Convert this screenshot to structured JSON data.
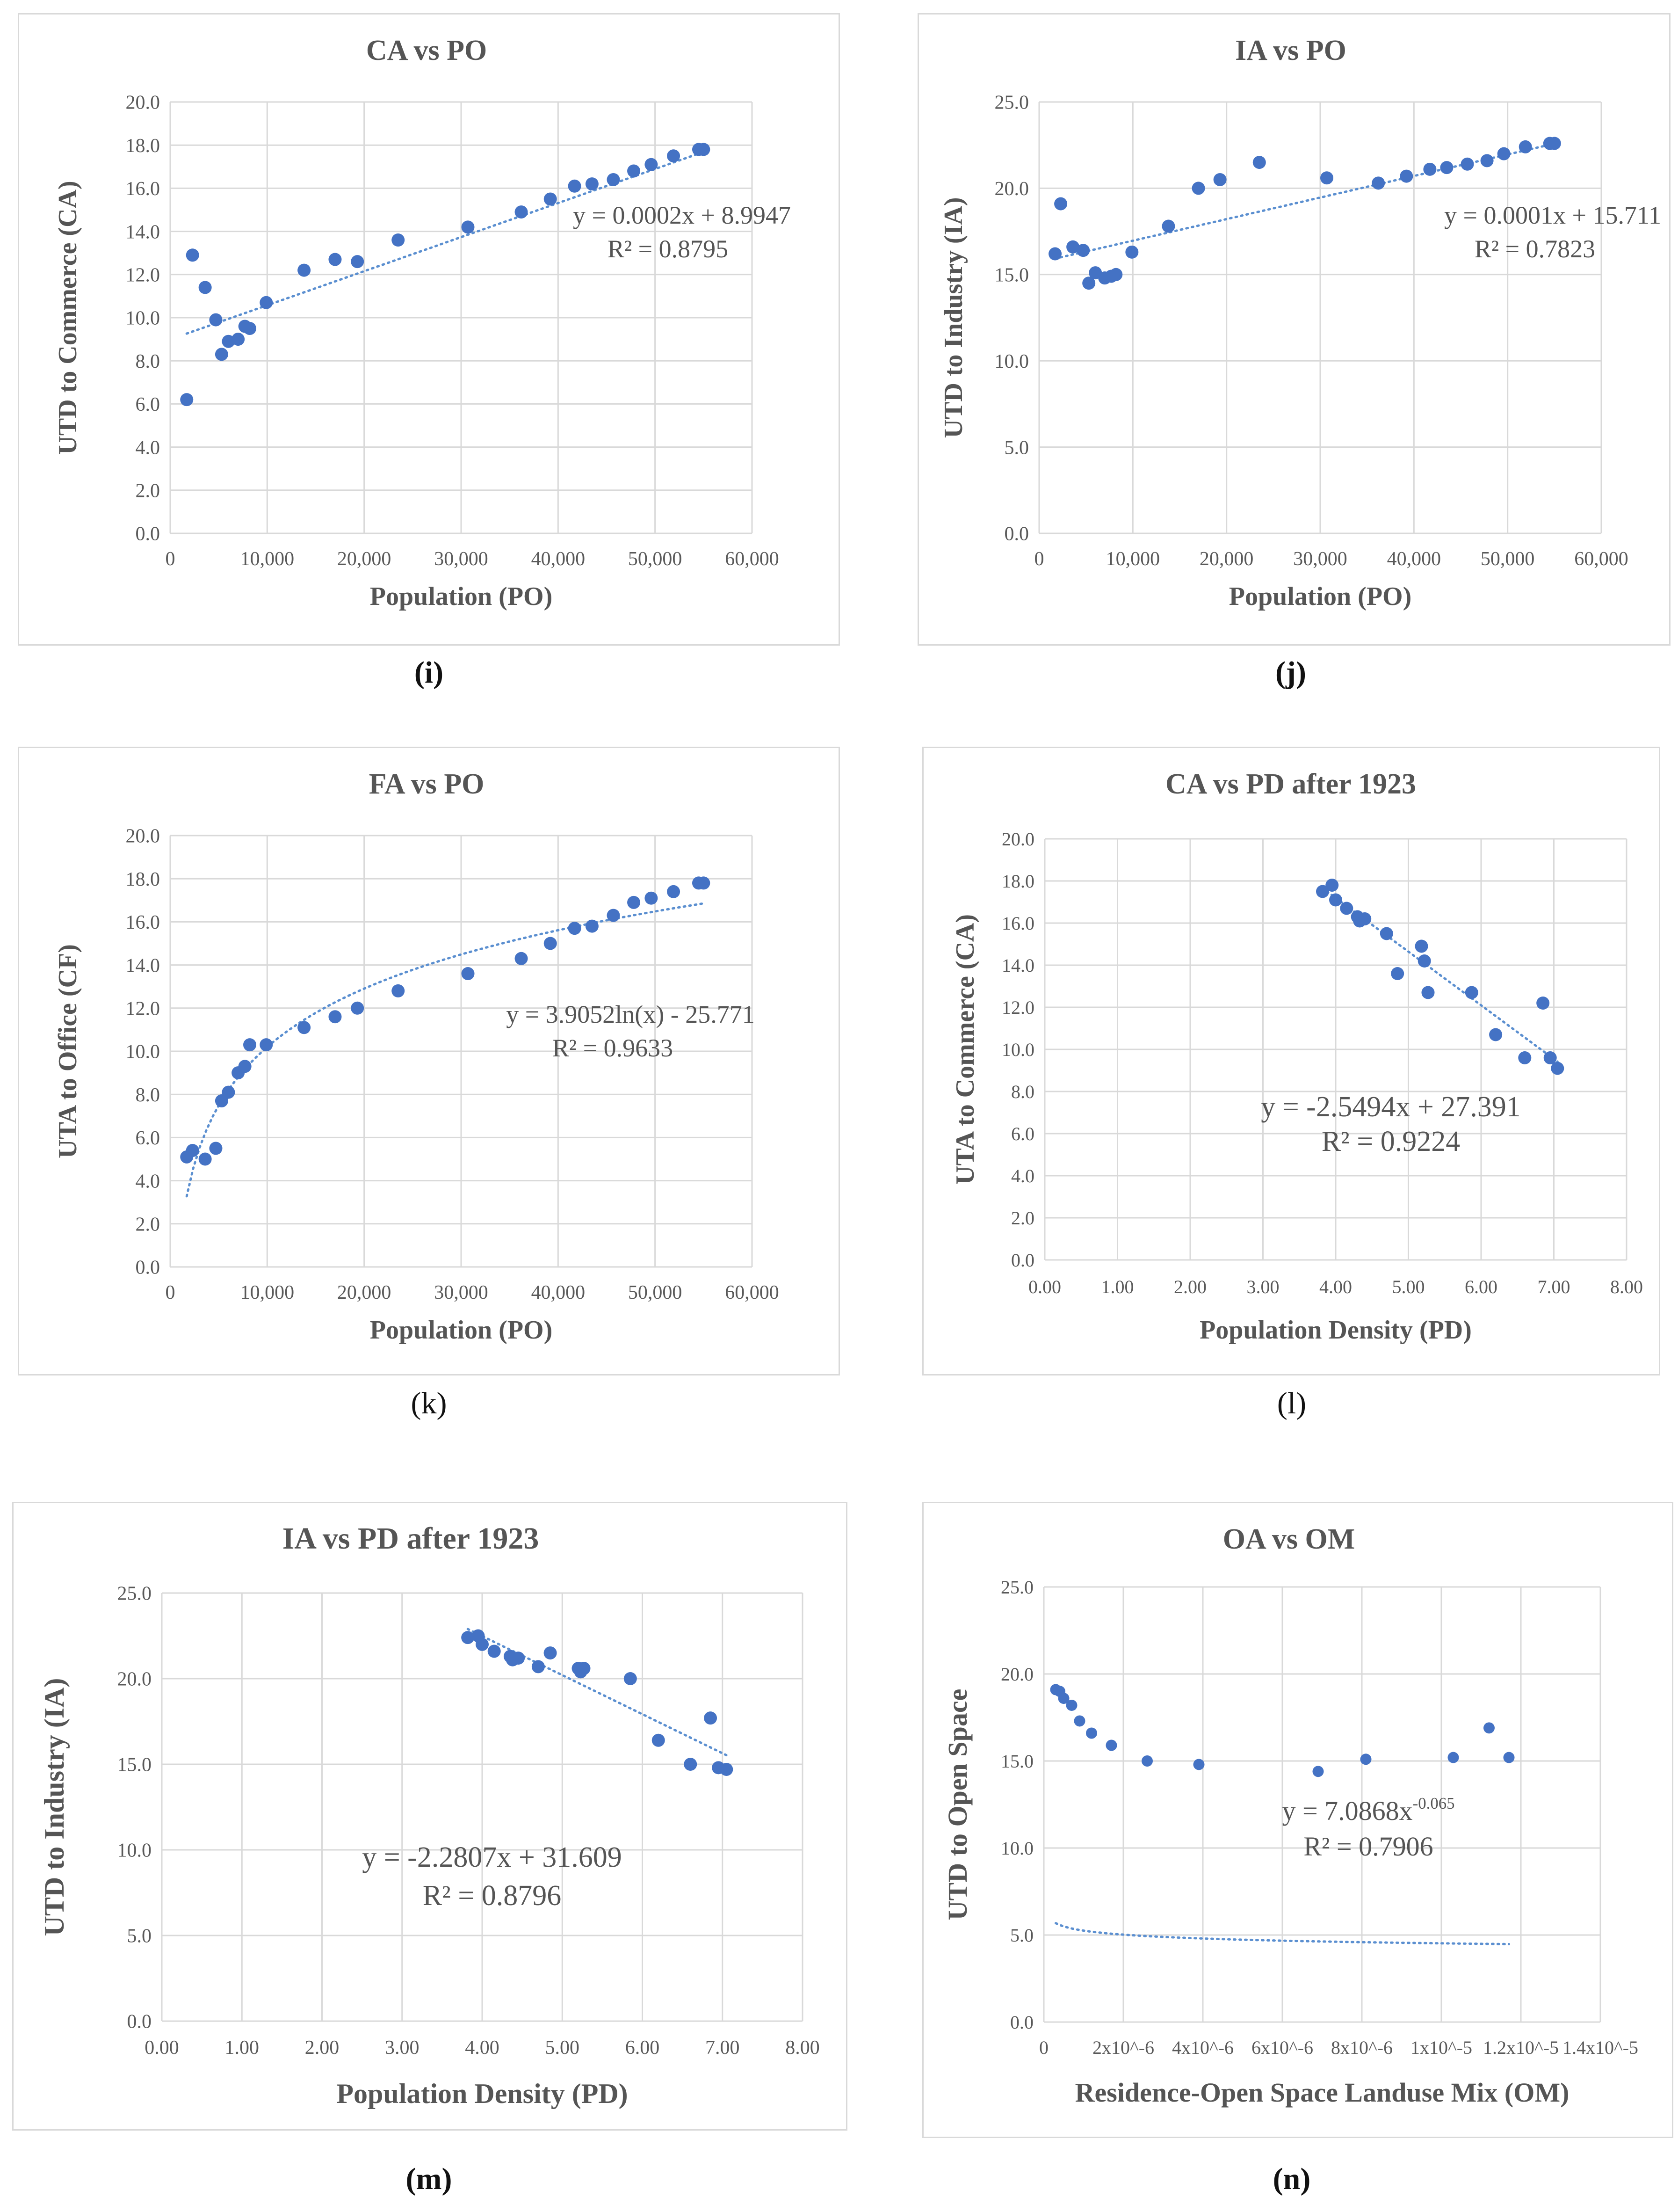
{
  "charts": [
    {
      "id": "i",
      "panel_label": "(i)",
      "type": "scatter",
      "title": "CA vs PO",
      "xlabel": "Population (PO)",
      "ylabel": "UTD to Commerce (CA)",
      "xlim": [
        0,
        60000
      ],
      "ylim": [
        0,
        20
      ],
      "xticks": [
        0,
        10000,
        20000,
        30000,
        40000,
        50000,
        60000
      ],
      "xtick_labels": [
        "0",
        "10,000",
        "20,000",
        "30,000",
        "40,000",
        "50,000",
        "60,000"
      ],
      "yticks": [
        0,
        2,
        4,
        6,
        8,
        10,
        12,
        14,
        16,
        18,
        20
      ],
      "ytick_labels": [
        "0.0",
        "2.0",
        "4.0",
        "6.0",
        "8.0",
        "10.0",
        "12.0",
        "14.0",
        "16.0",
        "18.0",
        "20.0"
      ],
      "points": [
        [
          1700,
          6.2
        ],
        [
          2300,
          12.9
        ],
        [
          3600,
          11.4
        ],
        [
          4700,
          9.9
        ],
        [
          5300,
          8.3
        ],
        [
          6000,
          8.9
        ],
        [
          7000,
          9.0
        ],
        [
          7700,
          9.6
        ],
        [
          8200,
          9.5
        ],
        [
          9900,
          10.7
        ],
        [
          13800,
          12.2
        ],
        [
          17000,
          12.7
        ],
        [
          19300,
          12.6
        ],
        [
          23500,
          13.6
        ],
        [
          30700,
          14.2
        ],
        [
          36200,
          14.9
        ],
        [
          39200,
          15.5
        ],
        [
          41700,
          16.1
        ],
        [
          43500,
          16.2
        ],
        [
          45700,
          16.4
        ],
        [
          47800,
          16.8
        ],
        [
          49600,
          17.1
        ],
        [
          51900,
          17.5
        ],
        [
          54500,
          17.8
        ],
        [
          55000,
          17.8
        ]
      ],
      "trend": {
        "kind": "linear",
        "a": 0.000158,
        "b": 8.9947,
        "x_range": [
          1700,
          55000
        ]
      },
      "equation": "y = 0.0002x + 8.9947",
      "r2": "R² = 0.8795"
    },
    {
      "id": "j",
      "panel_label": "(j)",
      "type": "scatter",
      "title": "IA vs PO",
      "xlabel": "Population (PO)",
      "ylabel": "UTD to Industry (IA)",
      "xlim": [
        0,
        60000
      ],
      "ylim": [
        0,
        25
      ],
      "xticks": [
        0,
        10000,
        20000,
        30000,
        40000,
        50000,
        60000
      ],
      "xtick_labels": [
        "0",
        "10,000",
        "20,000",
        "30,000",
        "40,000",
        "50,000",
        "60,000"
      ],
      "yticks": [
        0,
        5,
        10,
        15,
        20,
        25
      ],
      "ytick_labels": [
        "0.0",
        "5.0",
        "10.0",
        "15.0",
        "20.0",
        "25.0"
      ],
      "points": [
        [
          1700,
          16.2
        ],
        [
          2300,
          19.1
        ],
        [
          3600,
          16.6
        ],
        [
          4700,
          16.4
        ],
        [
          5300,
          14.5
        ],
        [
          6000,
          15.1
        ],
        [
          7000,
          14.8
        ],
        [
          7700,
          14.9
        ],
        [
          8200,
          15.0
        ],
        [
          9900,
          16.3
        ],
        [
          13800,
          17.8
        ],
        [
          17000,
          20.0
        ],
        [
          19300,
          20.5
        ],
        [
          23500,
          21.5
        ],
        [
          30700,
          20.6
        ],
        [
          36200,
          20.3
        ],
        [
          39200,
          20.7
        ],
        [
          41700,
          21.1
        ],
        [
          43500,
          21.2
        ],
        [
          45700,
          21.4
        ],
        [
          47800,
          21.6
        ],
        [
          49600,
          22.0
        ],
        [
          51900,
          22.4
        ],
        [
          54500,
          22.6
        ],
        [
          55000,
          22.6
        ]
      ],
      "trend": {
        "kind": "linear",
        "a": 0.000125,
        "b": 15.711,
        "x_range": [
          1700,
          55000
        ]
      },
      "equation": "y = 0.0001x + 15.711",
      "r2": "R² = 0.7823"
    },
    {
      "id": "k",
      "panel_label": "(k)",
      "type": "scatter",
      "title": "FA vs PO",
      "xlabel": "Population  (PO)",
      "ylabel": "UTA to Office (CF)",
      "xlim": [
        0,
        60000
      ],
      "ylim": [
        0,
        20
      ],
      "xticks": [
        0,
        10000,
        20000,
        30000,
        40000,
        50000,
        60000
      ],
      "xtick_labels": [
        "0",
        "10,000",
        "20,000",
        "30,000",
        "40,000",
        "50,000",
        "60,000"
      ],
      "yticks": [
        0,
        2,
        4,
        6,
        8,
        10,
        12,
        14,
        16,
        18,
        20
      ],
      "ytick_labels": [
        "0.0",
        "2.0",
        "4.0",
        "6.0",
        "8.0",
        "10.0",
        "12.0",
        "14.0",
        "16.0",
        "18.0",
        "20.0"
      ],
      "points": [
        [
          1700,
          5.1
        ],
        [
          2300,
          5.4
        ],
        [
          3600,
          5.0
        ],
        [
          4700,
          5.5
        ],
        [
          5300,
          7.7
        ],
        [
          6000,
          8.1
        ],
        [
          7000,
          9.0
        ],
        [
          7700,
          9.3
        ],
        [
          8200,
          10.3
        ],
        [
          9900,
          10.3
        ],
        [
          13800,
          11.1
        ],
        [
          17000,
          11.6
        ],
        [
          19300,
          12.0
        ],
        [
          23500,
          12.8
        ],
        [
          30700,
          13.6
        ],
        [
          36200,
          14.3
        ],
        [
          39200,
          15.0
        ],
        [
          41700,
          15.7
        ],
        [
          43500,
          15.8
        ],
        [
          45700,
          16.3
        ],
        [
          47800,
          16.9
        ],
        [
          49600,
          17.1
        ],
        [
          51900,
          17.4
        ],
        [
          54500,
          17.8
        ],
        [
          55000,
          17.8
        ]
      ],
      "trend": {
        "kind": "log",
        "a": 3.9052,
        "b": -25.771,
        "x_range": [
          1700,
          55000
        ]
      },
      "equation": "y = 3.9052ln(x) - 25.771",
      "r2": "R² = 0.9633"
    },
    {
      "id": "l",
      "panel_label": "(l)",
      "type": "scatter",
      "title": "CA vs PD after 1923",
      "xlabel": "Population Density (PD)",
      "ylabel": "UTA to Commerce  (CA)",
      "xlim": [
        0,
        8
      ],
      "ylim": [
        0,
        20
      ],
      "xticks": [
        0,
        1,
        2,
        3,
        4,
        5,
        6,
        7,
        8
      ],
      "xtick_labels": [
        "0.00",
        "1.00",
        "2.00",
        "3.00",
        "4.00",
        "5.00",
        "6.00",
        "7.00",
        "8.00"
      ],
      "yticks": [
        0,
        2,
        4,
        6,
        8,
        10,
        12,
        14,
        16,
        18,
        20
      ],
      "ytick_labels": [
        "0.0",
        "2.0",
        "4.0",
        "6.0",
        "8.0",
        "10.0",
        "12.0",
        "14.0",
        "16.0",
        "18.0",
        "20.0"
      ],
      "points": [
        [
          3.82,
          17.5
        ],
        [
          3.95,
          17.8
        ],
        [
          4.0,
          17.1
        ],
        [
          4.15,
          16.7
        ],
        [
          4.3,
          16.3
        ],
        [
          4.33,
          16.1
        ],
        [
          4.4,
          16.2
        ],
        [
          4.7,
          15.5
        ],
        [
          4.85,
          13.6
        ],
        [
          5.18,
          14.9
        ],
        [
          5.22,
          14.2
        ],
        [
          5.27,
          12.7
        ],
        [
          5.87,
          12.7
        ],
        [
          6.2,
          10.7
        ],
        [
          6.6,
          9.6
        ],
        [
          6.85,
          12.2
        ],
        [
          6.95,
          9.6
        ],
        [
          7.05,
          9.1
        ]
      ],
      "trend": {
        "kind": "linear",
        "a": -2.5494,
        "b": 27.391,
        "x_range": [
          3.82,
          7.05
        ]
      },
      "equation": "y = -2.5494x + 27.391",
      "r2": "R² = 0.9224"
    },
    {
      "id": "m",
      "panel_label": "(m)",
      "type": "scatter",
      "title": "IA vs PD after 1923",
      "xlabel": "Population Density (PD)",
      "ylabel": "UTD to Industry (IA)",
      "xlim": [
        0,
        8
      ],
      "ylim": [
        0,
        25
      ],
      "xticks": [
        0,
        1,
        2,
        3,
        4,
        5,
        6,
        7,
        8
      ],
      "xtick_labels": [
        "0.00",
        "1.00",
        "2.00",
        "3.00",
        "4.00",
        "5.00",
        "6.00",
        "7.00",
        "8.00"
      ],
      "yticks": [
        0,
        5,
        10,
        15,
        20,
        25
      ],
      "ytick_labels": [
        "0.0",
        "5.0",
        "10.0",
        "15.0",
        "20.0",
        "25.0"
      ],
      "points": [
        [
          3.82,
          22.4
        ],
        [
          3.95,
          22.5
        ],
        [
          4.0,
          22.0
        ],
        [
          4.15,
          21.6
        ],
        [
          4.35,
          21.3
        ],
        [
          4.38,
          21.1
        ],
        [
          4.45,
          21.2
        ],
        [
          4.7,
          20.7
        ],
        [
          4.85,
          21.5
        ],
        [
          5.2,
          20.6
        ],
        [
          5.23,
          20.4
        ],
        [
          5.27,
          20.6
        ],
        [
          5.85,
          20.0
        ],
        [
          6.2,
          16.4
        ],
        [
          6.6,
          15.0
        ],
        [
          6.85,
          17.7
        ],
        [
          6.95,
          14.8
        ],
        [
          7.05,
          14.7
        ]
      ],
      "trend": {
        "kind": "linear",
        "a": -2.2807,
        "b": 31.609,
        "x_range": [
          3.82,
          7.05
        ]
      },
      "equation": "y = -2.2807x + 31.609",
      "r2": "R² = 0.8796"
    },
    {
      "id": "n",
      "panel_label": "(n)",
      "type": "scatter",
      "title": "OA vs OM",
      "xlabel": "Residence-Open Space Landuse Mix (OM)",
      "ylabel": "UTD to Open Space",
      "xlim": [
        0,
        1.4e-05
      ],
      "ylim": [
        0,
        25
      ],
      "xticks": [
        0,
        2e-06,
        4e-06,
        6e-06,
        8e-06,
        1e-05,
        1.2e-05,
        1.4e-05
      ],
      "xtick_labels": [
        "0",
        "2x10^-6",
        "4x10^-6",
        "6x10^-6",
        "8x10^-6",
        "1x10^-5",
        "1.2x10^-5",
        "1.4x10^-5"
      ],
      "yticks": [
        0,
        5,
        10,
        15,
        20,
        25
      ],
      "ytick_labels": [
        "0.0",
        "5.0",
        "10.0",
        "15.0",
        "20.0",
        "25.0"
      ],
      "points": [
        [
          3e-07,
          19.1
        ],
        [
          4e-07,
          19.0
        ],
        [
          5e-07,
          18.6
        ],
        [
          7e-07,
          18.2
        ],
        [
          9e-07,
          17.3
        ],
        [
          1.2e-06,
          16.6
        ],
        [
          1.7e-06,
          15.9
        ],
        [
          2.6e-06,
          15.0
        ],
        [
          3.9e-06,
          14.8
        ],
        [
          6.9e-06,
          14.4
        ],
        [
          8.1e-06,
          15.1
        ],
        [
          1.03e-05,
          15.2
        ],
        [
          1.12e-05,
          16.9
        ],
        [
          1.17e-05,
          15.2
        ]
      ],
      "trend": {
        "kind": "power",
        "a": 7.0868,
        "b": -0.065,
        "x_range": [
          3e-07,
          1.17e-05
        ]
      },
      "equation": "y = 7.0868x",
      "equation_exp": "-0.065",
      "r2": "R² = 0.7906"
    }
  ],
  "style": {
    "point_color": "#4472c4",
    "trend_color": "#5b8fd0",
    "grid_color": "#d9d9d9",
    "border_color": "#d9d9d9"
  }
}
